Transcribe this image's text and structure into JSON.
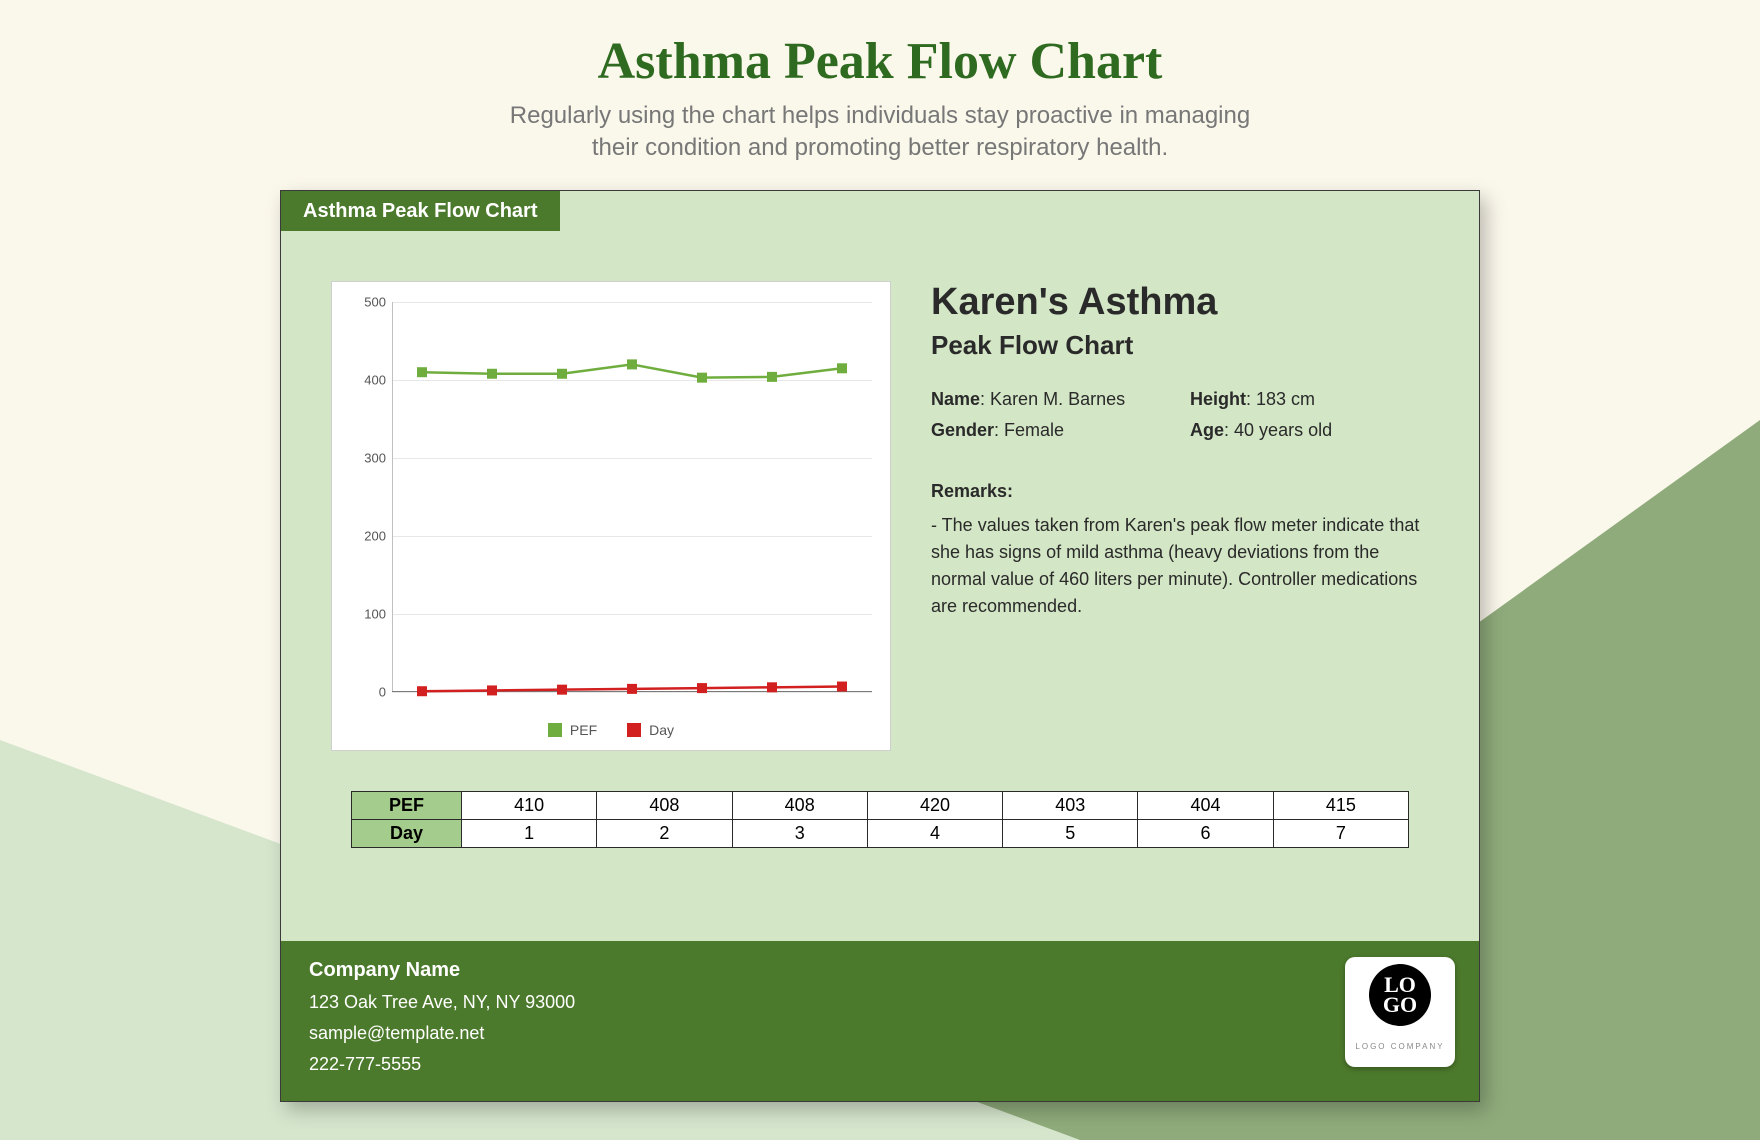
{
  "page": {
    "title": "Asthma Peak Flow Chart",
    "subtitle_l1": "Regularly using the chart helps individuals stay proactive in managing",
    "subtitle_l2": "their condition and promoting better respiratory health.",
    "bg_color": "#faf7eb",
    "triangle_dark": "#8fab7b",
    "triangle_light": "#d6e6cd",
    "title_color": "#2e6a1f"
  },
  "card": {
    "tab_label": "Asthma Peak Flow Chart",
    "bg_color": "#d3e6c5",
    "accent_color": "#4c7a2c"
  },
  "chart": {
    "type": "line",
    "ylim": [
      0,
      500
    ],
    "ytick_step": 100,
    "yticks": [
      0,
      100,
      200,
      300,
      400,
      500
    ],
    "x_count": 7,
    "grid_color": "#e7e7e7",
    "axis_color": "#7a7a7a",
    "background_color": "#ffffff",
    "series": [
      {
        "name": "PEF",
        "color": "#6fae3e",
        "marker": "square",
        "marker_size": 10,
        "values": [
          410,
          408,
          408,
          420,
          403,
          404,
          415
        ]
      },
      {
        "name": "Day",
        "color": "#d21f1f",
        "marker": "square",
        "marker_size": 10,
        "values": [
          1,
          2,
          3,
          4,
          5,
          6,
          7
        ]
      }
    ],
    "legend": [
      "PEF",
      "Day"
    ],
    "tick_fontsize": 13
  },
  "info": {
    "heading": "Karen's Asthma",
    "subheading": "Peak Flow Chart",
    "fields": {
      "name_label": "Name",
      "name_value": "Karen M. Barnes",
      "height_label": "Height",
      "height_value": "183 cm",
      "gender_label": "Gender",
      "gender_value": "Female",
      "age_label": "Age",
      "age_value": "40 years old"
    },
    "remarks_label": "Remarks:",
    "remarks_text": "- The values taken from Karen's peak flow meter indicate that she has signs of mild asthma (heavy deviations from the normal value of 460 liters per minute). Controller medications are recommended."
  },
  "table": {
    "rows": [
      {
        "label": "PEF",
        "cells": [
          "410",
          "408",
          "408",
          "420",
          "403",
          "404",
          "415"
        ]
      },
      {
        "label": "Day",
        "cells": [
          "1",
          "2",
          "3",
          "4",
          "5",
          "6",
          "7"
        ]
      }
    ],
    "header_bg": "#a4cc8c"
  },
  "footer": {
    "company": "Company Name",
    "address": "123 Oak Tree Ave, NY, NY 93000",
    "email": "sample@template.net",
    "phone": "222-777-5555",
    "logo_text": "LO\nGO",
    "logo_sub": "LOGO COMPANY"
  }
}
